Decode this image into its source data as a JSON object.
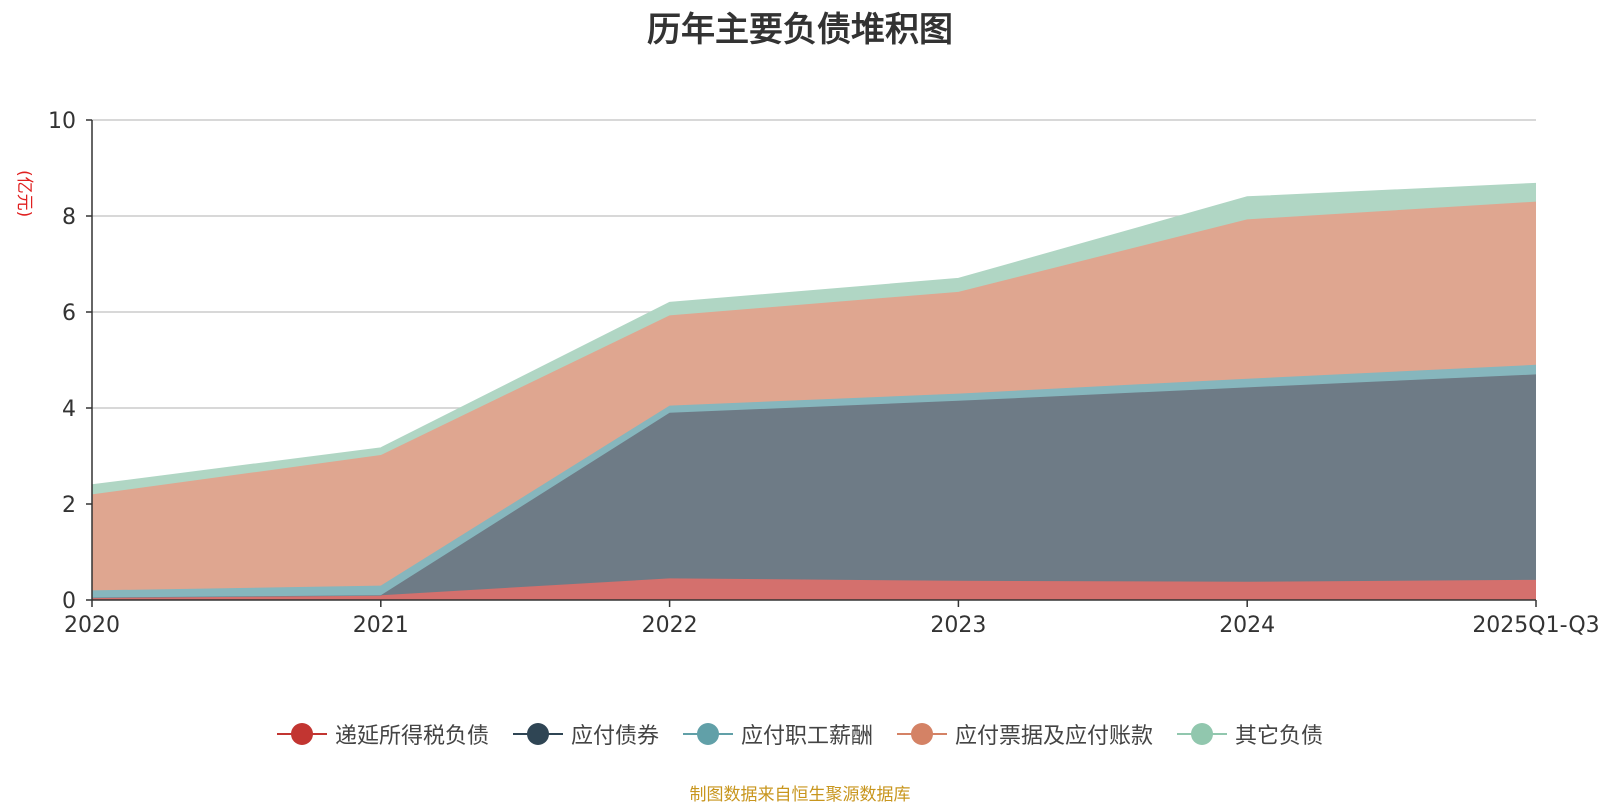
{
  "chart_data": {
    "type": "area",
    "stacked": true,
    "title": "历年主要负债堆积图",
    "ylabel": "(亿元)",
    "xlabel": "",
    "categories": [
      "2020",
      "2021",
      "2022",
      "2023",
      "2024",
      "2025Q1-Q3"
    ],
    "ylim": [
      0,
      10
    ],
    "yticks": [
      0,
      2,
      4,
      6,
      8,
      10
    ],
    "grid": true,
    "legend_position": "bottom",
    "series": [
      {
        "name": "递延所得税负债",
        "color": "#c23531",
        "fill": "#d4706d",
        "values": [
          0.05,
          0.1,
          0.45,
          0.4,
          0.38,
          0.42
        ]
      },
      {
        "name": "应付债券",
        "color": "#2f4554",
        "fill": "#6e7b86",
        "values": [
          0.0,
          0.0,
          3.45,
          3.75,
          4.05,
          4.28
        ]
      },
      {
        "name": "应付职工薪酬",
        "color": "#61a0a8",
        "fill": "#86b6bd",
        "values": [
          0.15,
          0.2,
          0.15,
          0.15,
          0.18,
          0.2
        ]
      },
      {
        "name": "应付票据及应付账款",
        "color": "#d48265",
        "fill": "#dfa690",
        "values": [
          2.0,
          2.72,
          1.88,
          2.12,
          3.32,
          3.4
        ]
      },
      {
        "name": "其它负债",
        "color": "#91c7ae",
        "fill": "#b0d6c4",
        "values": [
          0.2,
          0.15,
          0.27,
          0.28,
          0.47,
          0.38
        ]
      }
    ]
  },
  "footer": {
    "source": "制图数据来自恒生聚源数据库"
  }
}
